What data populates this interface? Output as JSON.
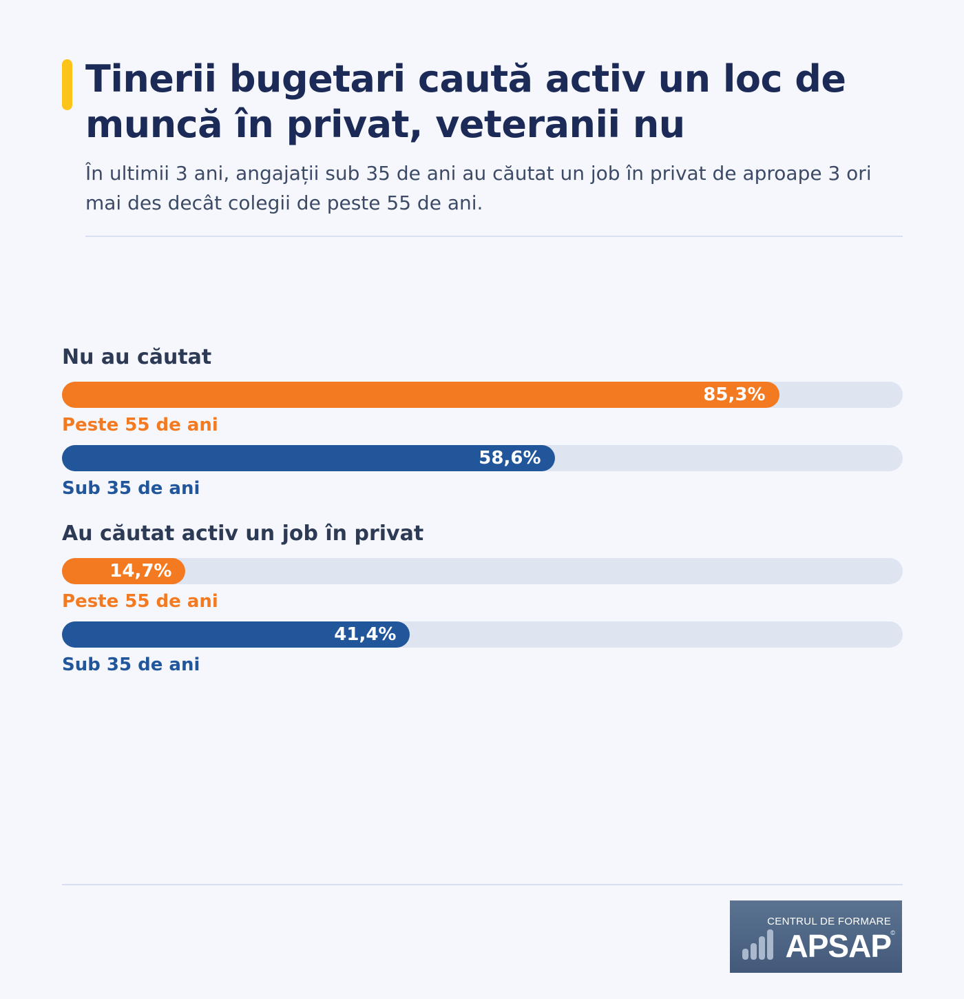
{
  "header": {
    "title": "Tinerii bugetari caută activ un loc de muncă în privat, veteranii nu",
    "subtitle": "În ultimii 3 ani, angajații sub 35 de ani au căutat un job în privat de aproape 3 ori mai des decât colegii de peste 55 de ani."
  },
  "colors": {
    "accent": "#fcc419",
    "orange": "#f47a22",
    "blue": "#22569b",
    "track": "#dfe5f0",
    "title": "#1b2a57"
  },
  "chart_data": {
    "type": "bar",
    "orientation": "horizontal",
    "scale_max": 100,
    "groups": [
      {
        "label": "Nu au căutat",
        "bars": [
          {
            "series": "Peste 55 de ani",
            "value": 85.3,
            "value_label": "85,3%",
            "color": "orange"
          },
          {
            "series": "Sub 35 de ani",
            "value": 58.6,
            "value_label": "58,6%",
            "color": "blue"
          }
        ]
      },
      {
        "label": "Au căutat activ un job în privat",
        "bars": [
          {
            "series": "Peste 55 de ani",
            "value": 14.7,
            "value_label": "14,7%",
            "color": "orange"
          },
          {
            "series": "Sub 35 de ani",
            "value": 41.4,
            "value_label": "41,4%",
            "color": "blue"
          }
        ]
      }
    ]
  },
  "logo": {
    "subtitle": "CENTRUL DE FORMARE",
    "name": "APSAP",
    "registered": "©",
    "icon": "bar-chart-icon"
  }
}
